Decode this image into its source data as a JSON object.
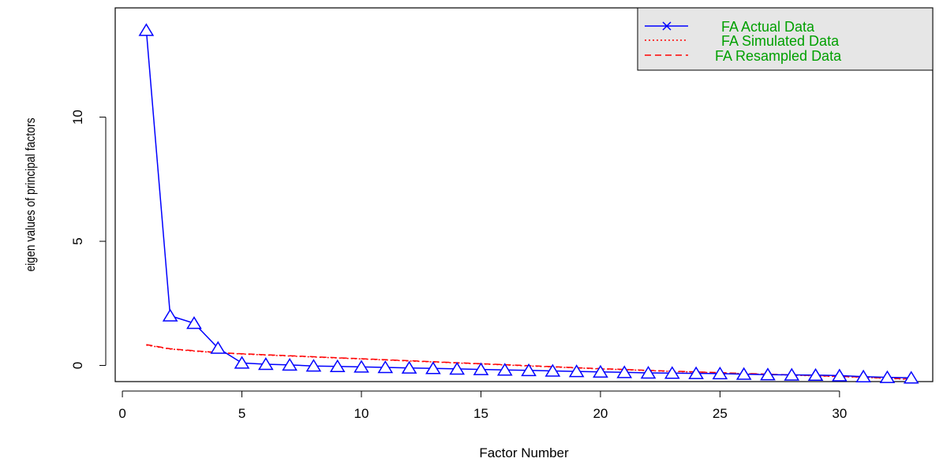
{
  "chart_data": {
    "type": "line",
    "title": "",
    "xlabel": "Factor Number",
    "ylabel": "eigen values of principal factors",
    "xlim": [
      -0.3,
      33.9
    ],
    "ylim": [
      -0.65,
      14.4
    ],
    "x_ticks": [
      0,
      5,
      10,
      15,
      20,
      25,
      30
    ],
    "y_ticks": [
      0,
      5,
      10
    ],
    "grid": false,
    "legend_position": "top-right",
    "colors": {
      "actual": "#0000ff",
      "simulated": "#ff0000",
      "resampled": "#ff0000",
      "legend_text": "#00a000",
      "legend_bg": "#e6e6e6"
    },
    "x": [
      1,
      2,
      3,
      4,
      5,
      6,
      7,
      8,
      9,
      10,
      11,
      12,
      13,
      14,
      15,
      16,
      17,
      18,
      19,
      20,
      21,
      22,
      23,
      24,
      25,
      26,
      27,
      28,
      29,
      30,
      31,
      32,
      33
    ],
    "series": [
      {
        "name": "FA  Actual Data",
        "marker": "triangle",
        "line": "solid",
        "values": [
          13.5,
          2.0,
          1.7,
          0.7,
          0.1,
          0.05,
          0.02,
          -0.02,
          -0.04,
          -0.06,
          -0.08,
          -0.1,
          -0.12,
          -0.14,
          -0.16,
          -0.18,
          -0.2,
          -0.22,
          -0.24,
          -0.26,
          -0.28,
          -0.3,
          -0.31,
          -0.32,
          -0.33,
          -0.35,
          -0.37,
          -0.38,
          -0.39,
          -0.41,
          -0.45,
          -0.48,
          -0.5
        ]
      },
      {
        "name": "FA  Simulated Data",
        "line": "dotted",
        "values": [
          0.82,
          0.66,
          0.58,
          0.51,
          0.46,
          0.42,
          0.38,
          0.34,
          0.3,
          0.26,
          0.22,
          0.18,
          0.14,
          0.1,
          0.06,
          0.02,
          -0.02,
          -0.06,
          -0.1,
          -0.14,
          -0.17,
          -0.21,
          -0.24,
          -0.27,
          -0.3,
          -0.33,
          -0.36,
          -0.39,
          -0.42,
          -0.45,
          -0.48,
          -0.52,
          -0.56
        ]
      },
      {
        "name": "FA  Resampled Data",
        "line": "dashed",
        "values": [
          0.84,
          0.67,
          0.59,
          0.52,
          0.47,
          0.43,
          0.39,
          0.35,
          0.31,
          0.27,
          0.23,
          0.19,
          0.15,
          0.11,
          0.07,
          0.03,
          -0.01,
          -0.05,
          -0.09,
          -0.13,
          -0.16,
          -0.2,
          -0.23,
          -0.26,
          -0.29,
          -0.32,
          -0.35,
          -0.38,
          -0.41,
          -0.44,
          -0.47,
          -0.51,
          -0.55
        ]
      }
    ]
  }
}
